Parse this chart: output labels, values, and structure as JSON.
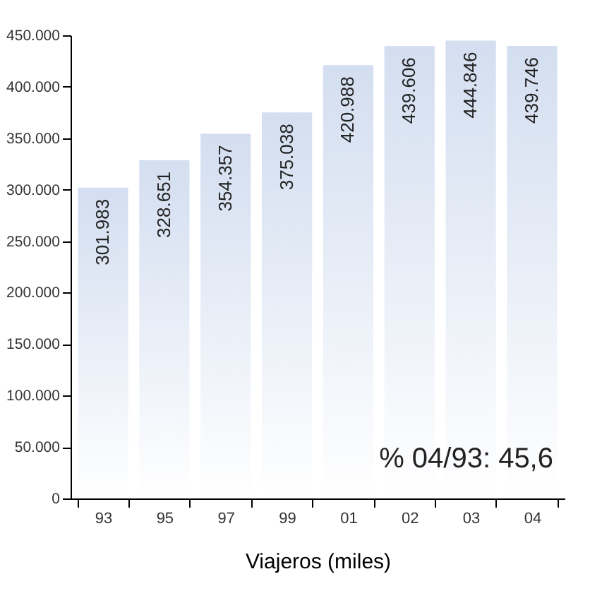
{
  "chart_data": {
    "type": "bar",
    "xlabel": "Viajeros (miles)",
    "categories": [
      "93",
      "95",
      "97",
      "99",
      "01",
      "02",
      "03",
      "04"
    ],
    "values": [
      301983,
      328651,
      354357,
      375038,
      420988,
      439606,
      444846,
      439746
    ],
    "value_labels": [
      "301.983",
      "328.651",
      "354.357",
      "375.038",
      "420.988",
      "439.606",
      "444.846",
      "439.746"
    ],
    "color": "#d3def0",
    "ylim": [
      0,
      450000
    ],
    "yticks": [
      {
        "value": 0,
        "label": "0"
      },
      {
        "value": 50000,
        "label": "50.000"
      },
      {
        "value": 100000,
        "label": "100.000"
      },
      {
        "value": 150000,
        "label": "150.000"
      },
      {
        "value": 200000,
        "label": "200.000"
      },
      {
        "value": 250000,
        "label": "250.000"
      },
      {
        "value": 300000,
        "label": "300.000"
      },
      {
        "value": 350000,
        "label": "350.000"
      },
      {
        "value": 400000,
        "label": "400.000"
      },
      {
        "value": 450000,
        "label": "450.000"
      }
    ],
    "annotations": [
      "% 04/93: 45,6"
    ],
    "grid": false
  }
}
